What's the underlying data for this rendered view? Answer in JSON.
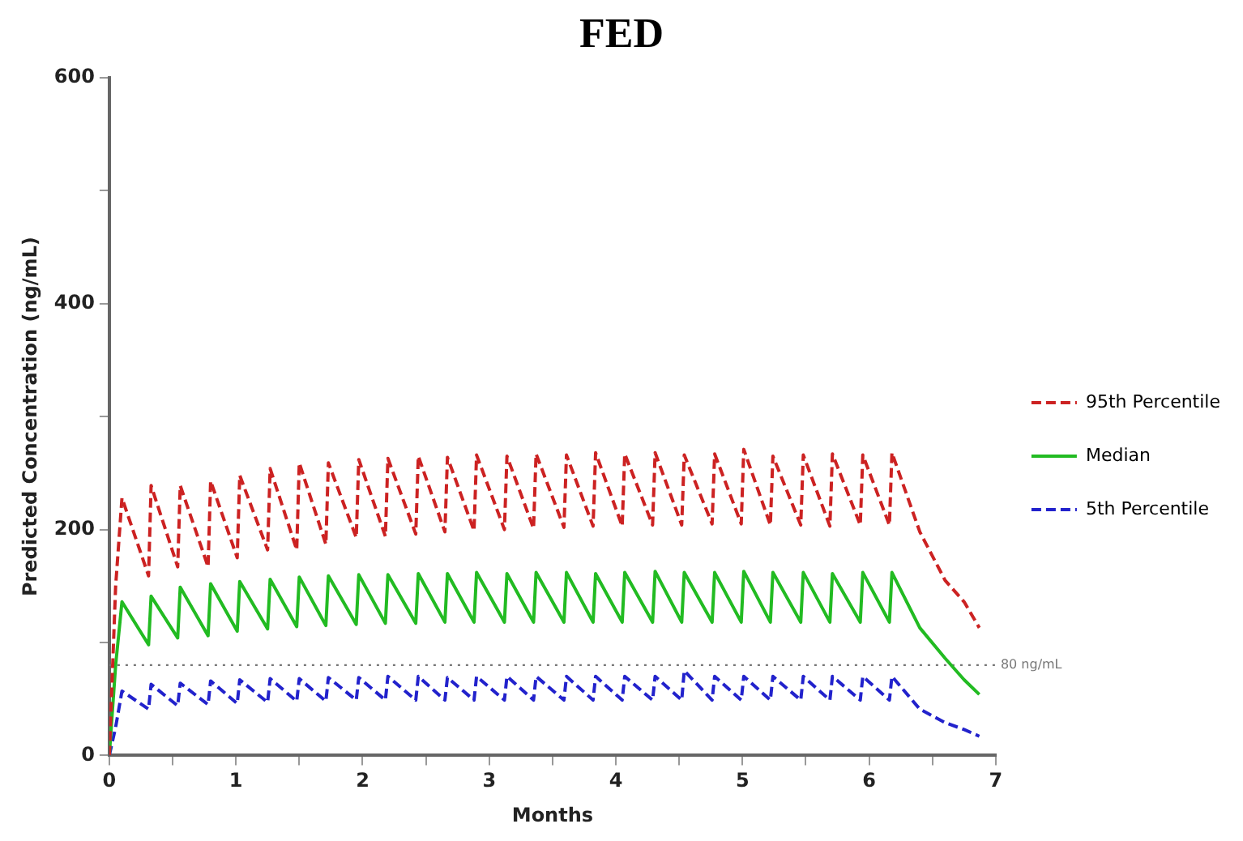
{
  "chart_data": {
    "type": "line",
    "title": "FED",
    "xlabel": "Months",
    "ylabel": "Predicted Concentration (ng/mL)",
    "x": [
      0,
      0.05,
      0.1,
      0.31,
      0.33,
      0.54,
      0.56,
      0.78,
      0.8,
      1.01,
      1.03,
      1.25,
      1.27,
      1.48,
      1.5,
      1.71,
      1.73,
      1.95,
      1.97,
      2.18,
      2.2,
      2.42,
      2.44,
      2.65,
      2.67,
      2.88,
      2.9,
      3.12,
      3.14,
      3.35,
      3.37,
      3.59,
      3.61,
      3.82,
      3.84,
      4.05,
      4.07,
      4.29,
      4.31,
      4.52,
      4.54,
      4.76,
      4.78,
      4.99,
      5.01,
      5.22,
      5.24,
      5.46,
      5.48,
      5.69,
      5.71,
      5.93,
      5.95,
      6.16,
      6.18,
      6.4,
      6.6,
      6.75,
      6.87
    ],
    "series": [
      {
        "name": "95th Percentile",
        "color": "#cc2222",
        "line_style": "dashed",
        "values": [
          0,
          150,
          228,
          159,
          239,
          167,
          239,
          167,
          243,
          175,
          248,
          182,
          254,
          182,
          259,
          187,
          259,
          193,
          262,
          194,
          263,
          196,
          265,
          198,
          264,
          199,
          266,
          200,
          265,
          201,
          267,
          202,
          266,
          203,
          268,
          203,
          267,
          204,
          268,
          204,
          266,
          205,
          267,
          205,
          271,
          204,
          265,
          204,
          266,
          203,
          267,
          204,
          266,
          204,
          268,
          198,
          155,
          136,
          113
        ]
      },
      {
        "name": "Median",
        "color": "#22bb22",
        "line_style": "solid",
        "values": [
          0,
          80,
          136,
          98,
          141,
          104,
          149,
          106,
          152,
          110,
          154,
          112,
          156,
          114,
          158,
          115,
          159,
          116,
          160,
          117,
          160,
          117,
          161,
          118,
          161,
          118,
          162,
          118,
          161,
          118,
          162,
          118,
          162,
          118,
          161,
          118,
          162,
          118,
          163,
          118,
          162,
          118,
          162,
          118,
          163,
          118,
          162,
          118,
          162,
          118,
          161,
          118,
          162,
          118,
          162,
          113,
          86,
          67,
          54
        ]
      },
      {
        "name": "5th Percentile",
        "color": "#2222cc",
        "line_style": "dashed",
        "values": [
          0,
          25,
          57,
          41,
          63,
          44,
          64,
          45,
          66,
          46,
          67,
          47,
          68,
          48,
          68,
          48,
          69,
          49,
          69,
          49,
          70,
          49,
          70,
          49,
          69,
          49,
          70,
          49,
          70,
          49,
          70,
          49,
          70,
          49,
          70,
          49,
          70,
          49,
          70,
          49,
          75,
          49,
          70,
          49,
          70,
          49,
          70,
          49,
          70,
          49,
          70,
          49,
          70,
          49,
          70,
          41,
          29,
          23,
          17
        ]
      }
    ],
    "xlim": [
      0,
      7
    ],
    "xticks": [
      0,
      {
        "value": 0.5,
        "label": null
      },
      1,
      {
        "value": 1.5,
        "label": null
      },
      2,
      {
        "value": 2.5,
        "label": null
      },
      3,
      {
        "value": 3.5,
        "label": null
      },
      4,
      {
        "value": 4.5,
        "label": null
      },
      5,
      {
        "value": 5.5,
        "label": null
      },
      6,
      {
        "value": 6.5,
        "label": null
      },
      7
    ],
    "ylim": [
      0,
      600
    ],
    "yticks": [
      0,
      {
        "value": 100,
        "label": null
      },
      200,
      {
        "value": 300,
        "label": null
      },
      400,
      {
        "value": 500,
        "label": null
      },
      600
    ],
    "ref_lines": [
      {
        "axis": "y",
        "value": 80,
        "label": "80 ng/mL",
        "color": "#777777",
        "line_style": "dotted"
      }
    ],
    "grid": false,
    "legend": "right",
    "marker": "none"
  }
}
